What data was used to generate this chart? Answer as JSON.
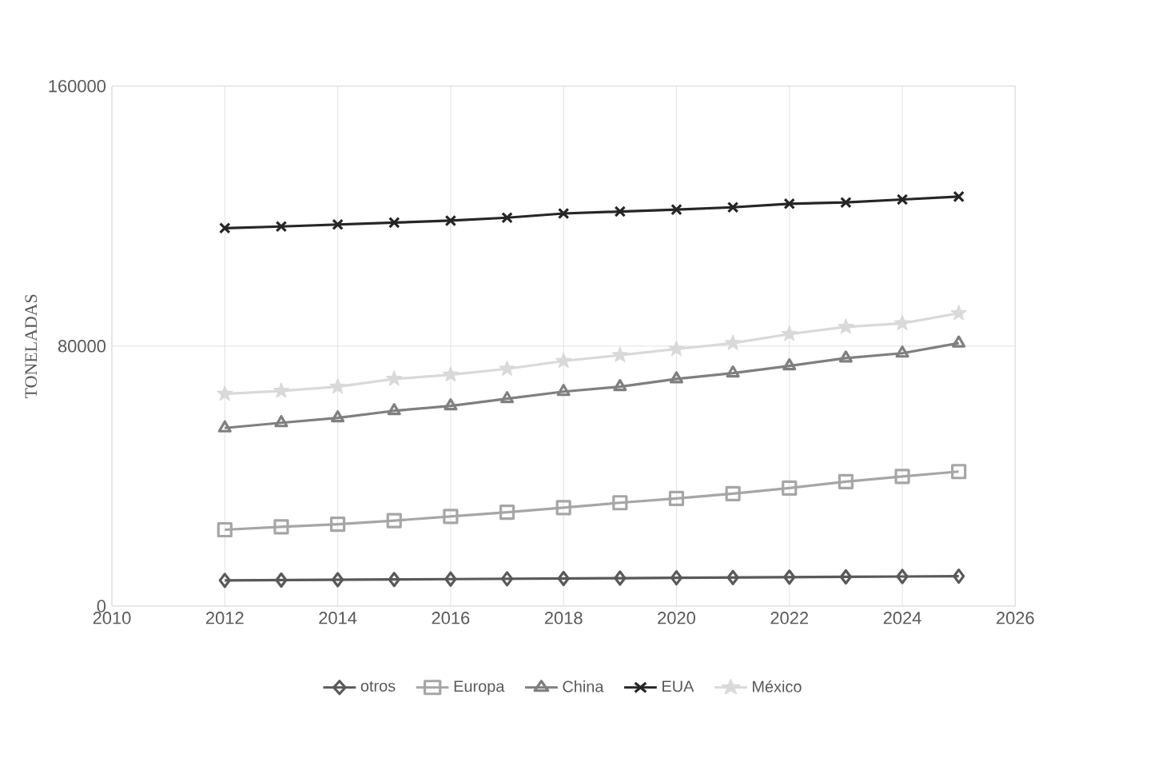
{
  "chart_data": {
    "type": "line",
    "ylabel": "TONELADAS",
    "x": [
      2012,
      2013,
      2014,
      2015,
      2016,
      2017,
      2018,
      2019,
      2020,
      2021,
      2022,
      2023,
      2024,
      2025
    ],
    "xlim": [
      2010,
      2026
    ],
    "xticks": [
      2010,
      2012,
      2014,
      2016,
      2018,
      2020,
      2022,
      2024,
      2026
    ],
    "ylim": [
      0,
      160000
    ],
    "yticks": [
      0,
      80000,
      160000
    ],
    "grid": true,
    "legend": "bottom",
    "series": [
      {
        "name": "otros",
        "color": "#595959",
        "marker": "diamond",
        "values": [
          7900,
          8000,
          8100,
          8200,
          8300,
          8400,
          8500,
          8600,
          8700,
          8800,
          8900,
          9000,
          9100,
          9200
        ]
      },
      {
        "name": "Europa",
        "color": "#a6a6a6",
        "marker": "square",
        "values": [
          23500,
          24400,
          25200,
          26300,
          27600,
          28900,
          30300,
          31800,
          33100,
          34600,
          36300,
          38300,
          39900,
          41400
        ]
      },
      {
        "name": "China",
        "color": "#7f7f7f",
        "marker": "triangle",
        "values": [
          54800,
          56400,
          57900,
          60100,
          61600,
          63800,
          66000,
          67500,
          69900,
          71700,
          73900,
          76300,
          77800,
          80900
        ]
      },
      {
        "name": "EUA",
        "color": "#262626",
        "marker": "cross",
        "values": [
          116300,
          116800,
          117400,
          118000,
          118600,
          119500,
          120800,
          121400,
          122000,
          122700,
          123800,
          124200,
          125100,
          126000
        ]
      },
      {
        "name": "México",
        "color": "#d9d9d9",
        "marker": "star",
        "values": [
          65300,
          66200,
          67500,
          69900,
          71200,
          73000,
          75400,
          77200,
          79100,
          80900,
          83700,
          85900,
          87000,
          90100
        ]
      }
    ]
  }
}
